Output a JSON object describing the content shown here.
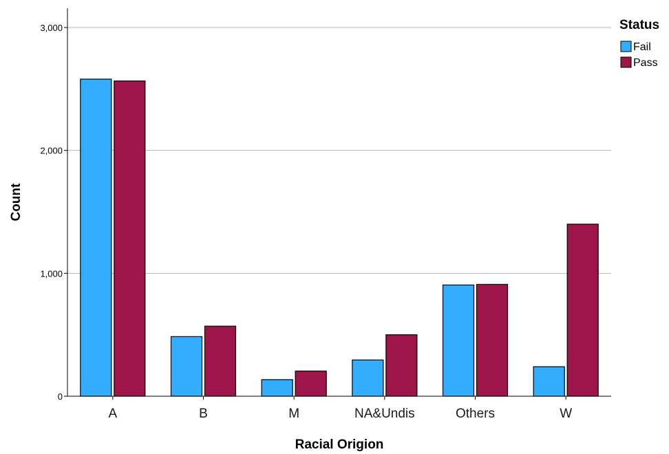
{
  "chart_data": {
    "type": "bar",
    "categories": [
      "A",
      "B",
      "M",
      "NA&Undis",
      "Others",
      "W"
    ],
    "series": [
      {
        "name": "Fail",
        "values": [
          2580,
          485,
          135,
          295,
          905,
          240
        ],
        "color": "#33adff"
      },
      {
        "name": "Pass",
        "values": [
          2565,
          570,
          205,
          500,
          910,
          1400
        ],
        "color": "#9e154a"
      }
    ],
    "xlabel": "Racial Origion",
    "ylabel": "Count",
    "ylim": [
      0,
      3000
    ],
    "yticks": [
      0,
      1000,
      2000,
      3000
    ],
    "ytick_labels": [
      "0",
      "1,000",
      "2,000",
      "3,000"
    ],
    "grid": "horizontal",
    "legend": {
      "title": "Status",
      "position": "top-right"
    }
  }
}
